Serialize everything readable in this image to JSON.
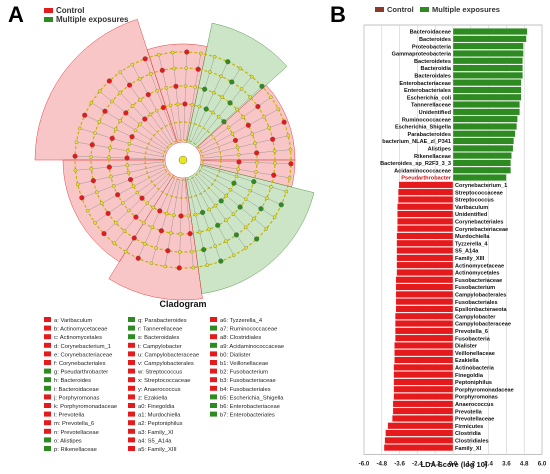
{
  "panels": {
    "a_letter": "A",
    "b_letter": "B"
  },
  "colors": {
    "control": "#e41a1c",
    "multiple": "#2e8b22",
    "control_fill": "#f4a0a0",
    "multiple_fill": "#a8d3a0",
    "node_yellow": "#e8e61c"
  },
  "legend_a": {
    "control": "Control",
    "multiple": "Multiple exposures"
  },
  "legend_b": {
    "control": "Control",
    "multiple": "Multiple exposures"
  },
  "cladogram": {
    "title": "Cladogram",
    "entries": [
      {
        "code": "a",
        "name": "Varibaculum",
        "group": "control"
      },
      {
        "code": "b",
        "name": "Actinomycetaceae",
        "group": "control"
      },
      {
        "code": "c",
        "name": "Actinomycetales",
        "group": "control"
      },
      {
        "code": "d",
        "name": "Corynebacterium_1",
        "group": "control"
      },
      {
        "code": "e",
        "name": "Corynebacteriaceae",
        "group": "control"
      },
      {
        "code": "f",
        "name": "Corynebacteriales",
        "group": "control"
      },
      {
        "code": "g",
        "name": "Pseudarthrobacter",
        "group": "multiple"
      },
      {
        "code": "h",
        "name": "Bacteroides",
        "group": "multiple"
      },
      {
        "code": "i",
        "name": "Bacteroidaceae",
        "group": "multiple"
      },
      {
        "code": "j",
        "name": "Porphyromonas",
        "group": "control"
      },
      {
        "code": "k",
        "name": "Porphyromonadaceae",
        "group": "control"
      },
      {
        "code": "l",
        "name": "Prevotella",
        "group": "control"
      },
      {
        "code": "m",
        "name": "Prevotella_6",
        "group": "control"
      },
      {
        "code": "n",
        "name": "Prevotellaceae",
        "group": "control"
      },
      {
        "code": "o",
        "name": "Alistipes",
        "group": "multiple"
      },
      {
        "code": "p",
        "name": "Rikenellaceae",
        "group": "multiple"
      },
      {
        "code": "q",
        "name": "Parabacteroides",
        "group": "multiple"
      },
      {
        "code": "r",
        "name": "Tannerellaceae",
        "group": "multiple"
      },
      {
        "code": "s",
        "name": "Bacteroidales",
        "group": "multiple"
      },
      {
        "code": "t",
        "name": "Campylobacter",
        "group": "control"
      },
      {
        "code": "u",
        "name": "Campylobacteraceae",
        "group": "control"
      },
      {
        "code": "v",
        "name": "Campylobacterales",
        "group": "control"
      },
      {
        "code": "w",
        "name": "Streptococcus",
        "group": "control"
      },
      {
        "code": "x",
        "name": "Streptococcaceae",
        "group": "control"
      },
      {
        "code": "y",
        "name": "Anaerococcus",
        "group": "control"
      },
      {
        "code": "z",
        "name": "Ezakiella",
        "group": "control"
      },
      {
        "code": "a0",
        "name": "Finegoldia",
        "group": "control"
      },
      {
        "code": "a1",
        "name": "Murdochiella",
        "group": "control"
      },
      {
        "code": "a2",
        "name": "Peptoniphilus",
        "group": "control"
      },
      {
        "code": "a3",
        "name": "Family_XI",
        "group": "control"
      },
      {
        "code": "a4",
        "name": "S5_A14a",
        "group": "control"
      },
      {
        "code": "a5",
        "name": "Family_XIII",
        "group": "control"
      },
      {
        "code": "a6",
        "name": "Tyzzerella_4",
        "group": "control"
      },
      {
        "code": "a7",
        "name": "Ruminococcaceae",
        "group": "multiple"
      },
      {
        "code": "a8",
        "name": "Clostridiales",
        "group": "control"
      },
      {
        "code": "a9",
        "name": "Acidaminococcaceae",
        "group": "multiple"
      },
      {
        "code": "b0",
        "name": "Dialister",
        "group": "control"
      },
      {
        "code": "b1",
        "name": "Veillonellaceae",
        "group": "control"
      },
      {
        "code": "b2",
        "name": "Fusobacterium",
        "group": "control"
      },
      {
        "code": "b3",
        "name": "Fusobacteriaceae",
        "group": "control"
      },
      {
        "code": "b4",
        "name": "Fusobacteriales",
        "group": "control"
      },
      {
        "code": "b5",
        "name": "Escherichia_Shigella",
        "group": "multiple"
      },
      {
        "code": "b6",
        "name": "Enterobacteriaceae",
        "group": "multiple"
      },
      {
        "code": "b7",
        "name": "Enterobacteriales",
        "group": "multiple"
      }
    ]
  },
  "chart_data": {
    "type": "bar",
    "orientation": "horizontal",
    "xlabel": "LDA Score (log 10)",
    "xlim": [
      -6.0,
      6.0
    ],
    "ticks": [
      "-6.0",
      "-4.8",
      "-3.6",
      "-2.4",
      "-1.2",
      "0.0",
      "1.2",
      "2.4",
      "3.6",
      "4.8",
      "6.0"
    ],
    "tick_values": [
      -6.0,
      -4.8,
      -3.6,
      -2.4,
      -1.2,
      0.0,
      1.2,
      2.4,
      3.6,
      4.8,
      6.0
    ],
    "grid": true,
    "legend_position": "top",
    "series": [
      {
        "name": "Multiple exposures",
        "group": "multiple",
        "labels": [
          "Bacteroidaceae",
          "Bacteroides",
          "Proteobacteria",
          "Gammaproteobacteria",
          "Bacteroidetes",
          "Bacteroidia",
          "Bacteroidales",
          "Enterobacteriaceae",
          "Enterobacteriales",
          "Escherichia_coli",
          "Tannerellaceae",
          "Unidentified",
          "Ruminococcaceae",
          "Escherichia_Shigella",
          "Parabacteroides",
          "bacterium_NLAE_zl_P341",
          "Alistipes",
          "Rikenellaceae",
          "Bacteroides_sp_R2F3_3_3",
          "Acidaminococcaceae",
          "Pseudarthrobacter"
        ],
        "values": [
          5.0,
          4.95,
          4.75,
          4.75,
          4.7,
          4.7,
          4.7,
          4.6,
          4.6,
          4.6,
          4.5,
          4.5,
          4.35,
          4.3,
          4.2,
          4.1,
          4.05,
          3.95,
          3.9,
          3.9,
          3.6
        ]
      },
      {
        "name": "Control",
        "group": "control",
        "labels": [
          "Corynebacterium_1",
          "Streptococcaceae",
          "Streptococcus",
          "Varibaculum",
          "Unidentified",
          "Corynebacteriales",
          "Corynebacteriaceae",
          "Murdochiella",
          "Tyzzerella_4",
          "S5_A14a",
          "Family_XIII",
          "Actinomycetaceae",
          "Actinomycetales",
          "Fusobacteriaceae",
          "Fusobacterium",
          "Campylobacterales",
          "Fusobacteriales",
          "Epsilonbacteraeota",
          "Campylobacter",
          "Campylobacteraceae",
          "Prevotella_6",
          "Fusobacteria",
          "Dialister",
          "Veillonellaceae",
          "Ezakiella",
          "Actinobacteria",
          "Finegoldia",
          "Peptoniphilus",
          "Porphyromonadaceae",
          "Porphyromonas",
          "Anaerococcus",
          "Prevotella",
          "Prevotellaceae",
          "Firmicutes",
          "Clostridia",
          "Clostridiales",
          "Family_XI"
        ],
        "values": [
          -3.65,
          -3.7,
          -3.7,
          -3.75,
          -3.75,
          -3.75,
          -3.75,
          -3.8,
          -3.8,
          -3.8,
          -3.8,
          -3.8,
          -3.8,
          -3.85,
          -3.85,
          -3.85,
          -3.85,
          -3.85,
          -3.9,
          -3.9,
          -3.9,
          -3.9,
          -3.95,
          -3.95,
          -3.95,
          -4.0,
          -4.0,
          -4.0,
          -4.0,
          -4.0,
          -4.05,
          -4.05,
          -4.1,
          -4.4,
          -4.55,
          -4.6,
          -4.65
        ]
      }
    ]
  }
}
